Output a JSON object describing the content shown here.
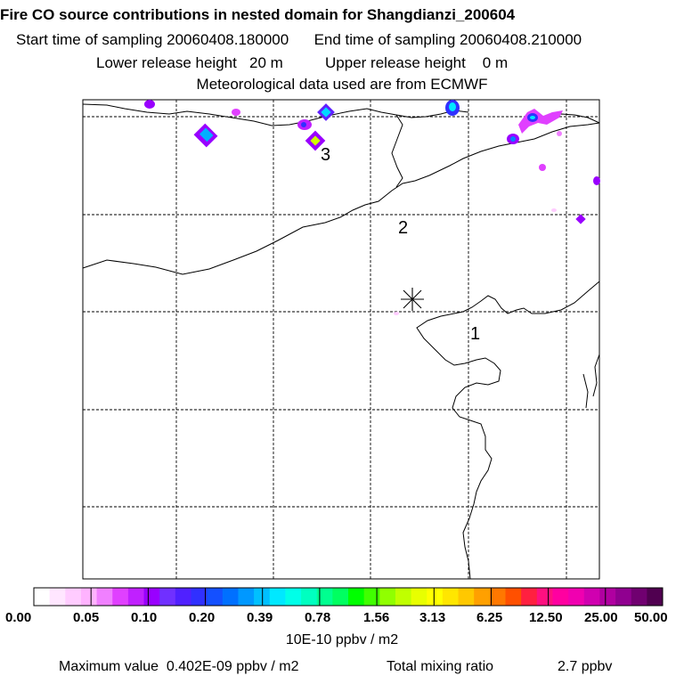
{
  "header": {
    "title": "Fire CO source contributions in nested domain for Shangdianzi_200604",
    "start_label": "Start time of sampling 20060408.180000",
    "end_label": "End time of sampling 20060408.210000",
    "lower_label": "Lower release height",
    "lower_value": "20 m",
    "upper_label": "Upper release height",
    "upper_value": "0 m",
    "met_label": "Meteorological data used are from ECMWF"
  },
  "map": {
    "site_marker": "asterisk-station-icon",
    "region_labels": [
      "1",
      "2",
      "3"
    ]
  },
  "colorbar": {
    "tick_labels": [
      "0.00",
      "0.05",
      "0.10",
      "0.20",
      "0.39",
      "0.78",
      "1.56",
      "3.13",
      "6.25",
      "12.50",
      "25.00",
      "50.00"
    ],
    "colors": [
      "#ffffff",
      "#ffe6ff",
      "#ffccff",
      "#ffb3ff",
      "#f080ff",
      "#e040ff",
      "#c020ff",
      "#9900ff",
      "#7030ff",
      "#5020ff",
      "#3030ff",
      "#1450ff",
      "#0070ff",
      "#0098ff",
      "#00c0ff",
      "#00e8ff",
      "#00ffe8",
      "#00ffc0",
      "#00ff90",
      "#00ff60",
      "#00ff00",
      "#40ff00",
      "#90ff00",
      "#c0ff00",
      "#e8ff00",
      "#ffff00",
      "#ffe600",
      "#ffc800",
      "#ffa000",
      "#ff7800",
      "#ff5000",
      "#ff2040",
      "#ff1080",
      "#ff00a0",
      "#f000b0",
      "#d000b0",
      "#b000a0",
      "#900090",
      "#700070",
      "#500050"
    ],
    "unit_label": "10E-10 ppbv / m2"
  },
  "footer": {
    "max_label": "Maximum value",
    "max_value": "0.402E-09 ppbv / m2",
    "total_label": "Total mixing ratio",
    "total_value": "2.7 ppbv"
  }
}
